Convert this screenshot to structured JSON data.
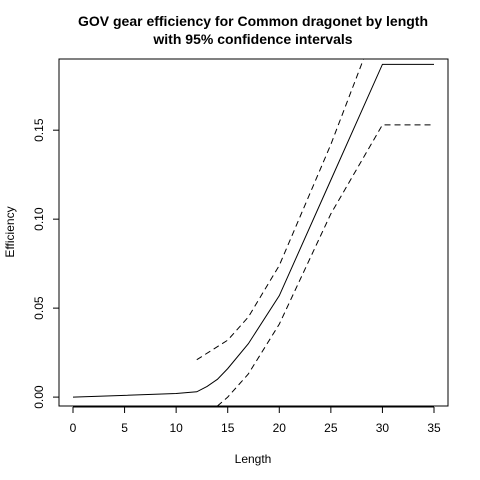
{
  "chart_data": {
    "type": "line",
    "title": "GOV gear efficiency for Common dragonet by length",
    "subtitle": "with 95% confidence intervals",
    "xlabel": "Length",
    "ylabel": "Efficiency",
    "xlim": [
      0,
      35
    ],
    "ylim": [
      -0.005,
      0.19
    ],
    "xticks": [
      "0",
      "5",
      "10",
      "15",
      "20",
      "25",
      "30",
      "35"
    ],
    "yticks": [
      "0.00",
      "0.05",
      "0.10",
      "0.15"
    ],
    "grid": false,
    "series": [
      {
        "style": "solid",
        "x": [
          0,
          5,
          10,
          12,
          13,
          14,
          15,
          17,
          20,
          25,
          30,
          35
        ],
        "y": [
          0.0,
          0.001,
          0.002,
          0.003,
          0.006,
          0.01,
          0.016,
          0.03,
          0.057,
          0.122,
          0.187,
          0.187
        ]
      },
      {
        "style": "dashed",
        "x": [
          12,
          15,
          17,
          20,
          25,
          28.5
        ],
        "y": [
          0.021,
          0.032,
          0.045,
          0.074,
          0.142,
          0.195
        ]
      },
      {
        "style": "dashed",
        "x": [
          14,
          15,
          17,
          20,
          25,
          30,
          35
        ],
        "y": [
          -0.005,
          0.0,
          0.013,
          0.041,
          0.103,
          0.153,
          0.153
        ]
      }
    ]
  }
}
